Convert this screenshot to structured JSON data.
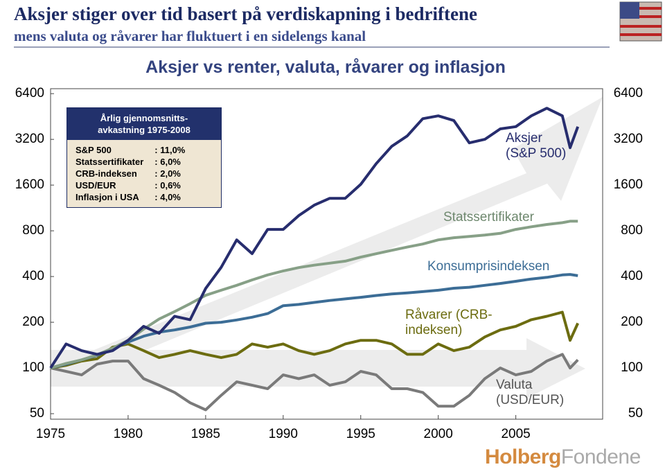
{
  "header": {
    "title": "Aksjer stiger over tid basert på verdiskapning i bedriftene",
    "subtitle": "mens valuta og råvarer har fluktuert i en sidelengs kanal"
  },
  "inset": {
    "title": [
      "Årlig gjennomsnitts-",
      "avkastning 1975-2008"
    ],
    "rows": [
      [
        "S&P 500",
        ": 11,0%"
      ],
      [
        "Statssertifikater",
        ":  6,0%"
      ],
      [
        "CRB-indeksen",
        ":  2,0%"
      ],
      [
        "USD/EUR",
        ":  0,6%"
      ],
      [
        "Inflasjon i USA",
        ":  4,0%"
      ]
    ]
  },
  "logo": [
    "Holberg",
    "Fondene"
  ],
  "chart_data": {
    "type": "line",
    "title": "Aksjer vs renter, valuta, råvarer og inflasjon",
    "x": [
      1975,
      1976,
      1977,
      1978,
      1979,
      1980,
      1981,
      1982,
      1983,
      1984,
      1985,
      1986,
      1987,
      1988,
      1989,
      1990,
      1991,
      1992,
      1993,
      1994,
      1995,
      1996,
      1997,
      1998,
      1999,
      2000,
      2001,
      2002,
      2003,
      2004,
      2005,
      2006,
      2007,
      2008,
      2008.5,
      2009
    ],
    "xlim": [
      1975,
      2010.6
    ],
    "xticks": [
      1975,
      1980,
      1985,
      1990,
      1995,
      2000,
      2005
    ],
    "ylim": [
      46,
      6900
    ],
    "yticks": [
      50,
      100,
      200,
      400,
      800,
      1600,
      3200,
      6400
    ],
    "log_scale_y": true,
    "series": [
      {
        "name": "Aksjer (S&P 500)",
        "color": "#272d6e",
        "values": [
          100,
          144,
          130,
          123,
          130,
          152,
          188,
          169,
          219,
          208,
          334,
          460,
          697,
          566,
          817,
          817,
          1007,
          1180,
          1310,
          1310,
          1620,
          2215,
          2880,
          3370,
          4380,
          4570,
          4260,
          3035,
          3200,
          3750,
          3880,
          4570,
          5130,
          4570,
          2820,
          3880
        ]
      },
      {
        "name": "Statssertifikater",
        "color": "#87a087",
        "values": [
          100,
          107,
          113,
          122,
          135,
          152,
          180,
          210,
          235,
          265,
          301,
          325,
          350,
          380,
          410,
          435,
          458,
          475,
          490,
          505,
          537,
          565,
          595,
          625,
          655,
          697,
          720,
          735,
          750,
          770,
          817,
          850,
          880,
          905,
          925,
          925
        ]
      },
      {
        "name": "Konsumprisindeksen",
        "color": "#3c6d96",
        "values": [
          100,
          106,
          113,
          121,
          134,
          148,
          162,
          172,
          178,
          186,
          197,
          200,
          207,
          216,
          228,
          257,
          262,
          270,
          278,
          285,
          292,
          300,
          307,
          312,
          318,
          325,
          335,
          340,
          350,
          360,
          372,
          385,
          395,
          410,
          413,
          405
        ]
      },
      {
        "name": "Råvarer (CRB-indeksen)",
        "color": "#6c6c10",
        "values": [
          100,
          104,
          111,
          115,
          137,
          144,
          130,
          117,
          123,
          130,
          123,
          117,
          123,
          144,
          137,
          144,
          130,
          123,
          130,
          144,
          152,
          152,
          144,
          123,
          123,
          144,
          130,
          137,
          160,
          178,
          188,
          208,
          219,
          233,
          152,
          197
        ]
      },
      {
        "name": "Valuta (USD/EUR)",
        "color": "#7a7a7a",
        "values": [
          100,
          95,
          90,
          106,
          111,
          111,
          85,
          77,
          69,
          59,
          53,
          66,
          81,
          77,
          73,
          90,
          85,
          90,
          77,
          81,
          95,
          90,
          73,
          73,
          69,
          56,
          56,
          66,
          85,
          100,
          90,
          95,
          111,
          123,
          100,
          113
        ]
      }
    ]
  }
}
